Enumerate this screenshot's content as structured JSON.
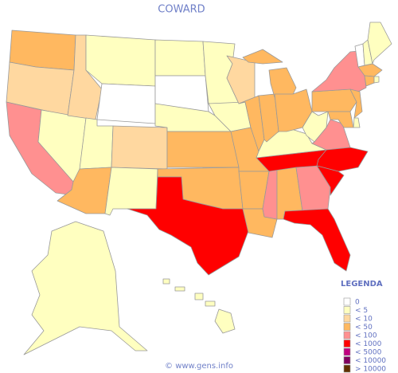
{
  "title": "COWARD",
  "legend": {
    "title": "LEGENDA",
    "entries": [
      {
        "label": "0",
        "color": "#ffffff"
      },
      {
        "label": "< 5",
        "color": "#ffffc0"
      },
      {
        "label": "< 10",
        "color": "#ffd8a0"
      },
      {
        "label": "< 50",
        "color": "#ffb860"
      },
      {
        "label": "< 100",
        "color": "#ff9090"
      },
      {
        "label": "< 1000",
        "color": "#ff0000"
      },
      {
        "label": "< 5000",
        "color": "#c00080"
      },
      {
        "label": "< 10000",
        "color": "#800060"
      },
      {
        "label": "> 10000",
        "color": "#603000"
      }
    ]
  },
  "states": [
    3,
    2,
    4,
    1,
    2,
    1,
    0,
    1,
    2,
    3,
    1,
    1,
    0,
    1,
    3,
    3,
    5,
    1,
    1,
    3,
    3,
    3,
    2,
    3,
    4,
    3,
    4,
    5,
    5,
    1,
    3,
    3,
    3,
    1,
    4,
    5,
    5,
    3,
    4,
    3,
    1,
    3,
    0,
    1,
    1,
    3,
    3,
    1,
    1,
    1
  ],
  "footer": "© www.gens.info"
}
